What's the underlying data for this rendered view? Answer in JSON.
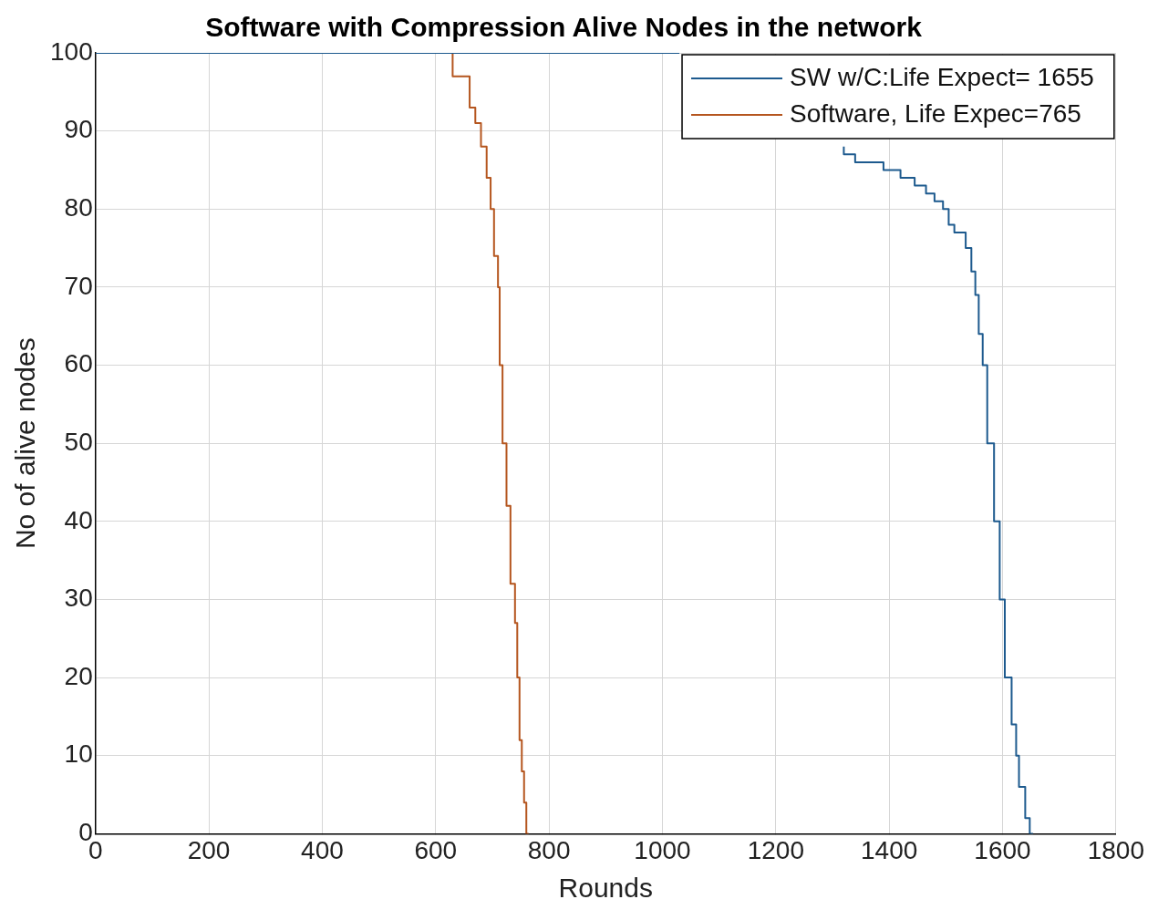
{
  "chart_data": {
    "type": "step",
    "title": "Software with Compression Alive Nodes in the network",
    "xlabel": "Rounds",
    "ylabel": "No of alive nodes",
    "xlim": [
      0,
      1800
    ],
    "xticks": [
      0,
      200,
      400,
      600,
      800,
      1000,
      1200,
      1400,
      1600,
      1800
    ],
    "ylim": [
      0,
      100
    ],
    "yticks": [
      0,
      10,
      20,
      30,
      40,
      50,
      60,
      70,
      80,
      90,
      100
    ],
    "grid": true,
    "legend": "top right",
    "line_style": "solid",
    "marker": "none",
    "series": [
      {
        "name": "SW w/C:Life Expect= 1655",
        "color": "#1d5a8e",
        "x": [
          0,
          1030,
          1100,
          1320,
          1340,
          1390,
          1420,
          1445,
          1465,
          1480,
          1495,
          1505,
          1515,
          1535,
          1545,
          1552,
          1558,
          1565,
          1573,
          1585,
          1595,
          1604,
          1616,
          1624,
          1629,
          1640,
          1648,
          1654
        ],
        "values": [
          100,
          100,
          null,
          88,
          87,
          86,
          85,
          84,
          83,
          82,
          81,
          80,
          78,
          77,
          75,
          72,
          69,
          64,
          60,
          50,
          40,
          30,
          20,
          14,
          10,
          6,
          2,
          0
        ]
      },
      {
        "name": "Software, Life Expec=765",
        "color": "#b5561f",
        "x": [
          0,
          630,
          635,
          660,
          670,
          680,
          690,
          697,
          703,
          710,
          713,
          718,
          725,
          732,
          740,
          744,
          748,
          752,
          756,
          760,
          764
        ],
        "values": [
          100,
          100,
          97,
          97,
          93,
          91,
          88,
          84,
          80,
          74,
          70,
          60,
          50,
          42,
          32,
          27,
          20,
          12,
          8,
          4,
          0
        ]
      }
    ]
  }
}
